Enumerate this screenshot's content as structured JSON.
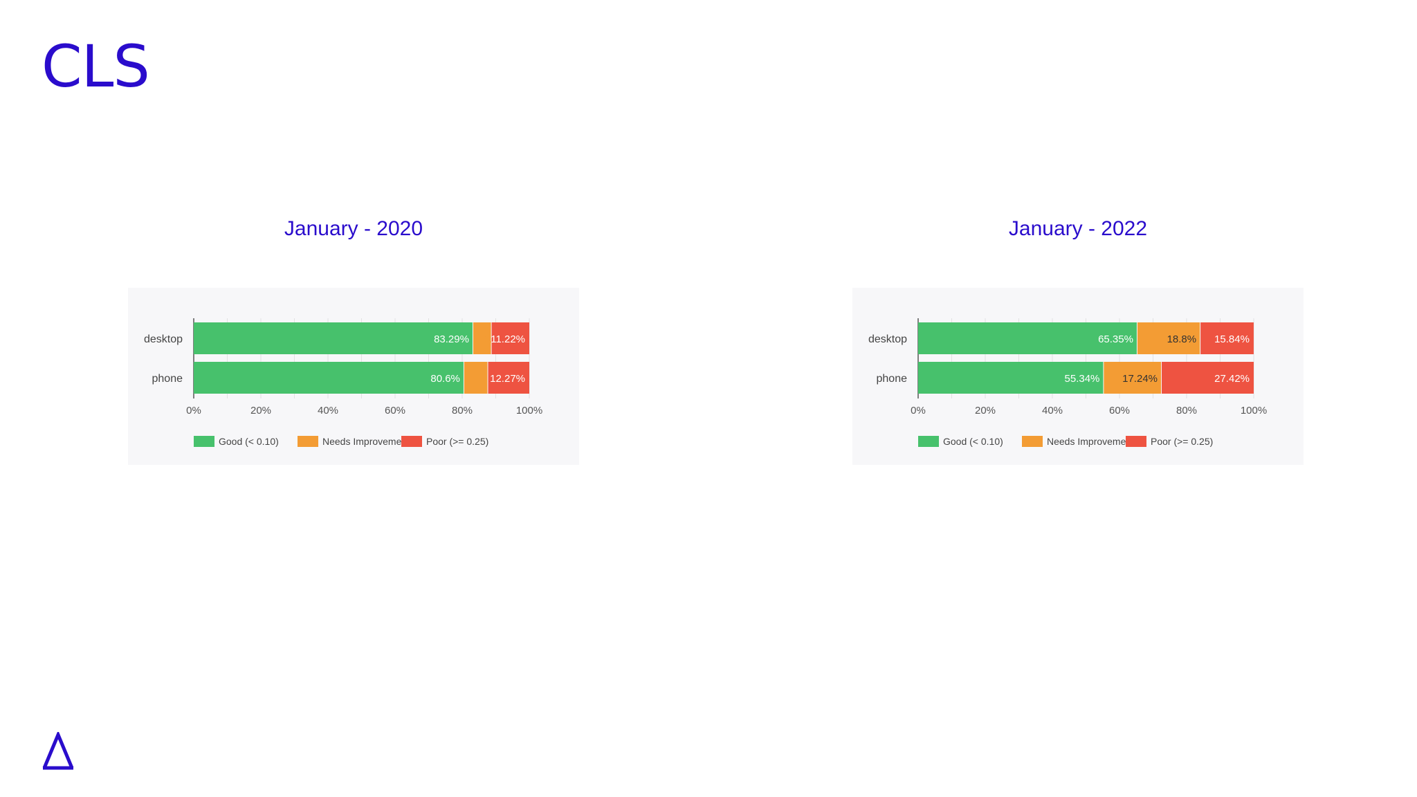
{
  "slide": {
    "title": "CLS"
  },
  "legend_labels": [
    "Good (< 0.10)",
    "Needs Improvement",
    "Poor (>= 0.25)"
  ],
  "colors": {
    "good": "#47c16c",
    "needs": "#f39c34",
    "poor": "#ee5341",
    "title": "#2a0ccc"
  },
  "chart_data": [
    {
      "type": "bar",
      "orientation": "horizontal",
      "stacked": true,
      "title": "January - 2020",
      "categories": [
        "desktop",
        "phone"
      ],
      "series": [
        {
          "name": "Good (< 0.10)",
          "values": [
            83.29,
            80.6
          ],
          "labels": [
            "83.29%",
            "80.6%"
          ]
        },
        {
          "name": "Needs Improvement",
          "values": [
            5.49,
            7.13
          ],
          "labels": [
            "5.49%",
            ""
          ]
        },
        {
          "name": "Poor (>= 0.25)",
          "values": [
            11.22,
            12.27
          ],
          "labels": [
            "11.22%",
            "12.27%"
          ]
        }
      ],
      "xlim": [
        0,
        100
      ],
      "ticks": [
        "0%",
        "20%",
        "40%",
        "60%",
        "80%",
        "100%"
      ],
      "legend_position": "bottom"
    },
    {
      "type": "bar",
      "orientation": "horizontal",
      "stacked": true,
      "title": "January - 2022",
      "categories": [
        "desktop",
        "phone"
      ],
      "series": [
        {
          "name": "Good (< 0.10)",
          "values": [
            65.35,
            55.34
          ],
          "labels": [
            "65.35%",
            "55.34%"
          ]
        },
        {
          "name": "Needs Improvement",
          "values": [
            18.8,
            17.24
          ],
          "labels": [
            "18.8%",
            "17.24%"
          ]
        },
        {
          "name": "Poor (>= 0.25)",
          "values": [
            15.84,
            27.42
          ],
          "labels": [
            "15.84%",
            "27.42%"
          ]
        }
      ],
      "xlim": [
        0,
        100
      ],
      "ticks": [
        "0%",
        "20%",
        "40%",
        "60%",
        "80%",
        "100%"
      ],
      "legend_position": "bottom"
    }
  ]
}
